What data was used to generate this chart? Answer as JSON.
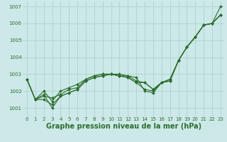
{
  "xlabel": "Graphe pression niveau de la mer (hPa)",
  "background_color": "#cce8e8",
  "grid_color": "#aacccc",
  "line_color": "#2d6e2d",
  "x": [
    0,
    1,
    2,
    3,
    4,
    5,
    6,
    7,
    8,
    9,
    10,
    11,
    12,
    13,
    14,
    15,
    16,
    17,
    18,
    19,
    20,
    21,
    22,
    23
  ],
  "series": [
    [
      1002.7,
      1001.5,
      1001.8,
      1001.0,
      1001.7,
      1001.9,
      1002.1,
      1002.6,
      1002.8,
      1002.9,
      1003.0,
      1002.9,
      1002.9,
      1002.8,
      1002.0,
      1001.9,
      1002.5,
      1002.6,
      1003.8,
      1004.6,
      1005.2,
      1005.9,
      1006.0,
      1006.5
    ],
    [
      1002.7,
      1001.5,
      1001.5,
      1001.2,
      1001.7,
      1001.9,
      1002.1,
      1002.6,
      1002.8,
      1002.9,
      1003.0,
      1002.9,
      1002.8,
      1002.5,
      1002.1,
      1002.0,
      1002.5,
      1002.6,
      1003.8,
      1004.6,
      1005.2,
      1005.9,
      1006.0,
      1006.5
    ],
    [
      1002.7,
      1001.5,
      1001.7,
      1001.6,
      1001.8,
      1002.1,
      1002.2,
      1002.7,
      1002.9,
      1003.0,
      1003.0,
      1003.0,
      1002.9,
      1002.6,
      1002.5,
      1002.1,
      1002.5,
      1002.7,
      1003.8,
      1004.6,
      1005.2,
      1005.9,
      1006.0,
      1006.5
    ],
    [
      1002.7,
      1001.5,
      1002.0,
      1001.4,
      1002.0,
      1002.2,
      1002.4,
      1002.7,
      1002.9,
      1003.0,
      1003.0,
      1002.9,
      1002.8,
      1002.5,
      1002.5,
      1002.1,
      1002.5,
      1002.7,
      1003.8,
      1004.6,
      1005.2,
      1005.9,
      1006.0,
      1007.0
    ]
  ],
  "ylim_min": 1000.5,
  "ylim_max": 1007.3,
  "yticks": [
    1001,
    1002,
    1003,
    1004,
    1005,
    1006,
    1007
  ],
  "xticks": [
    0,
    1,
    2,
    3,
    4,
    5,
    6,
    7,
    8,
    9,
    10,
    11,
    12,
    13,
    14,
    15,
    16,
    17,
    18,
    19,
    20,
    21,
    22,
    23
  ],
  "tick_fontsize": 5.0,
  "xlabel_fontsize": 7.0,
  "marker_size": 2.0,
  "line_width": 0.8
}
